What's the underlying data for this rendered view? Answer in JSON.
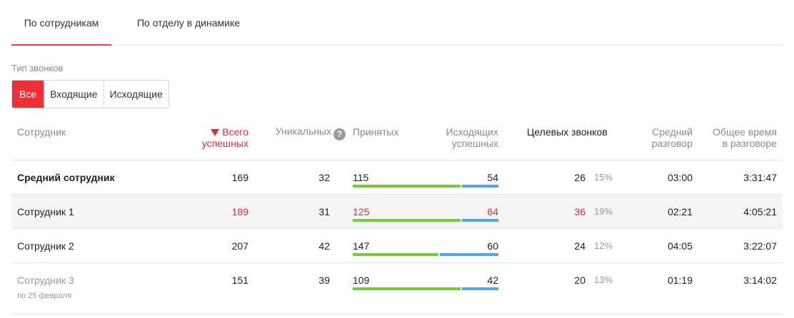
{
  "tabs": [
    {
      "label": "По сотрудникам",
      "active": true
    },
    {
      "label": "По отделу в динамике",
      "active": false
    }
  ],
  "filter": {
    "label": "Тип звонков",
    "options": [
      "Все",
      "Входящие",
      "Исходящие"
    ],
    "selected": "Все"
  },
  "columns": {
    "employee": "Сотрудник",
    "total_line1": "Всего",
    "total_line2": "успешных",
    "unique": "Уникальных",
    "accepted": "Принятых",
    "outgoing_line1": "Исходящих",
    "outgoing_line2": "успешных",
    "target": "Целевых звонков",
    "avg_line1": "Средний",
    "avg_line2": "разговор",
    "time_line1": "Общее время",
    "time_line2": "в разговоре"
  },
  "rows": [
    {
      "name": "Средний сотрудник",
      "total": "169",
      "unique": "32",
      "accepted": "115",
      "outgoing": "54",
      "target": "26",
      "target_pct": "15%",
      "avg": "03:00",
      "time": "3:31:47"
    },
    {
      "name": "Сотрудник 1",
      "total": "189",
      "unique": "31",
      "accepted": "125",
      "outgoing": "64",
      "target": "36",
      "target_pct": "19%",
      "avg": "02:21",
      "time": "4:05:21"
    },
    {
      "name": "Сотрудник 2",
      "total": "207",
      "unique": "42",
      "accepted": "147",
      "outgoing": "60",
      "target": "24",
      "target_pct": "12%",
      "avg": "04:05",
      "time": "3:22:07"
    },
    {
      "name": "Сотрудник 3",
      "total": "151",
      "unique": "39",
      "accepted": "109",
      "outgoing": "42",
      "target": "20",
      "target_pct": "13%",
      "avg": "01:19",
      "time": "3:14:02",
      "note": "по 25 февраля"
    }
  ],
  "colors": {
    "accent": "#ee2f36",
    "accepted_bar": "#77cc33",
    "outgoing_bar": "#4aa8f0",
    "highlight_row": "#f5f5f5"
  },
  "icons": {
    "help": "question-circle-icon",
    "sort": "triangle-down-icon"
  }
}
